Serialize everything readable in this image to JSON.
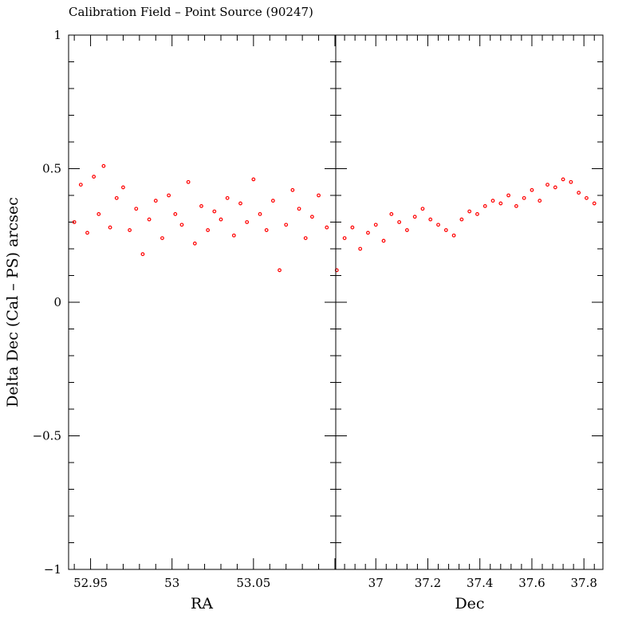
{
  "title": "Calibration Field – Point Source (90247)",
  "ylabel": "Delta Dec (Cal – PS) arcsec",
  "chart_data": [
    {
      "type": "scatter",
      "xlabel": "RA",
      "ylabel": "Delta Dec (Cal – PS) arcsec",
      "xlim": [
        52.9365,
        53.1005
      ],
      "ylim": [
        -1,
        1
      ],
      "xticks": [
        52.95,
        53,
        53.05
      ],
      "xtick_labels": [
        "52.95",
        "53",
        "53.05"
      ],
      "yticks": [
        -1,
        -0.5,
        0,
        0.5,
        1
      ],
      "ytick_labels": [
        "−1",
        "−0.5",
        "0",
        "0.5",
        "1"
      ],
      "marker_color": "#ff0000",
      "x": [
        52.94,
        52.944,
        52.948,
        52.952,
        52.955,
        52.958,
        52.962,
        52.966,
        52.97,
        52.974,
        52.978,
        52.982,
        52.986,
        52.99,
        52.994,
        52.998,
        53.002,
        53.006,
        53.01,
        53.014,
        53.018,
        53.022,
        53.026,
        53.03,
        53.034,
        53.038,
        53.042,
        53.046,
        53.05,
        53.054,
        53.058,
        53.062,
        53.066,
        53.07,
        53.074,
        53.078,
        53.082,
        53.086,
        53.09,
        53.095
      ],
      "y": [
        0.3,
        0.44,
        0.26,
        0.47,
        0.33,
        0.51,
        0.28,
        0.39,
        0.43,
        0.27,
        0.35,
        0.18,
        0.31,
        0.38,
        0.24,
        0.4,
        0.33,
        0.29,
        0.45,
        0.22,
        0.36,
        0.27,
        0.34,
        0.31,
        0.39,
        0.25,
        0.37,
        0.3,
        0.46,
        0.33,
        0.27,
        0.38,
        0.12,
        0.29,
        0.42,
        0.35,
        0.24,
        0.32,
        0.4,
        0.28
      ]
    },
    {
      "type": "scatter",
      "xlabel": "Dec",
      "ylabel": "",
      "xlim": [
        36.846,
        37.873
      ],
      "ylim": [
        -1,
        1
      ],
      "xticks": [
        37,
        37.2,
        37.4,
        37.6,
        37.8
      ],
      "xtick_labels": [
        "37",
        "37.2",
        "37.4",
        "37.6",
        "37.8"
      ],
      "yticks": [
        -1,
        -0.5,
        0,
        0.5,
        1
      ],
      "marker_color": "#ff0000",
      "x": [
        36.85,
        36.88,
        36.91,
        36.94,
        36.97,
        37.0,
        37.03,
        37.06,
        37.09,
        37.12,
        37.15,
        37.18,
        37.21,
        37.24,
        37.27,
        37.3,
        37.33,
        37.36,
        37.39,
        37.42,
        37.45,
        37.48,
        37.51,
        37.54,
        37.57,
        37.6,
        37.63,
        37.66,
        37.69,
        37.72,
        37.75,
        37.78,
        37.81,
        37.84
      ],
      "y": [
        0.12,
        0.24,
        0.28,
        0.2,
        0.26,
        0.29,
        0.23,
        0.33,
        0.3,
        0.27,
        0.32,
        0.35,
        0.31,
        0.29,
        0.27,
        0.25,
        0.31,
        0.34,
        0.33,
        0.36,
        0.38,
        0.37,
        0.4,
        0.36,
        0.39,
        0.42,
        0.38,
        0.44,
        0.43,
        0.46,
        0.45,
        0.41,
        0.39,
        0.37
      ]
    }
  ]
}
